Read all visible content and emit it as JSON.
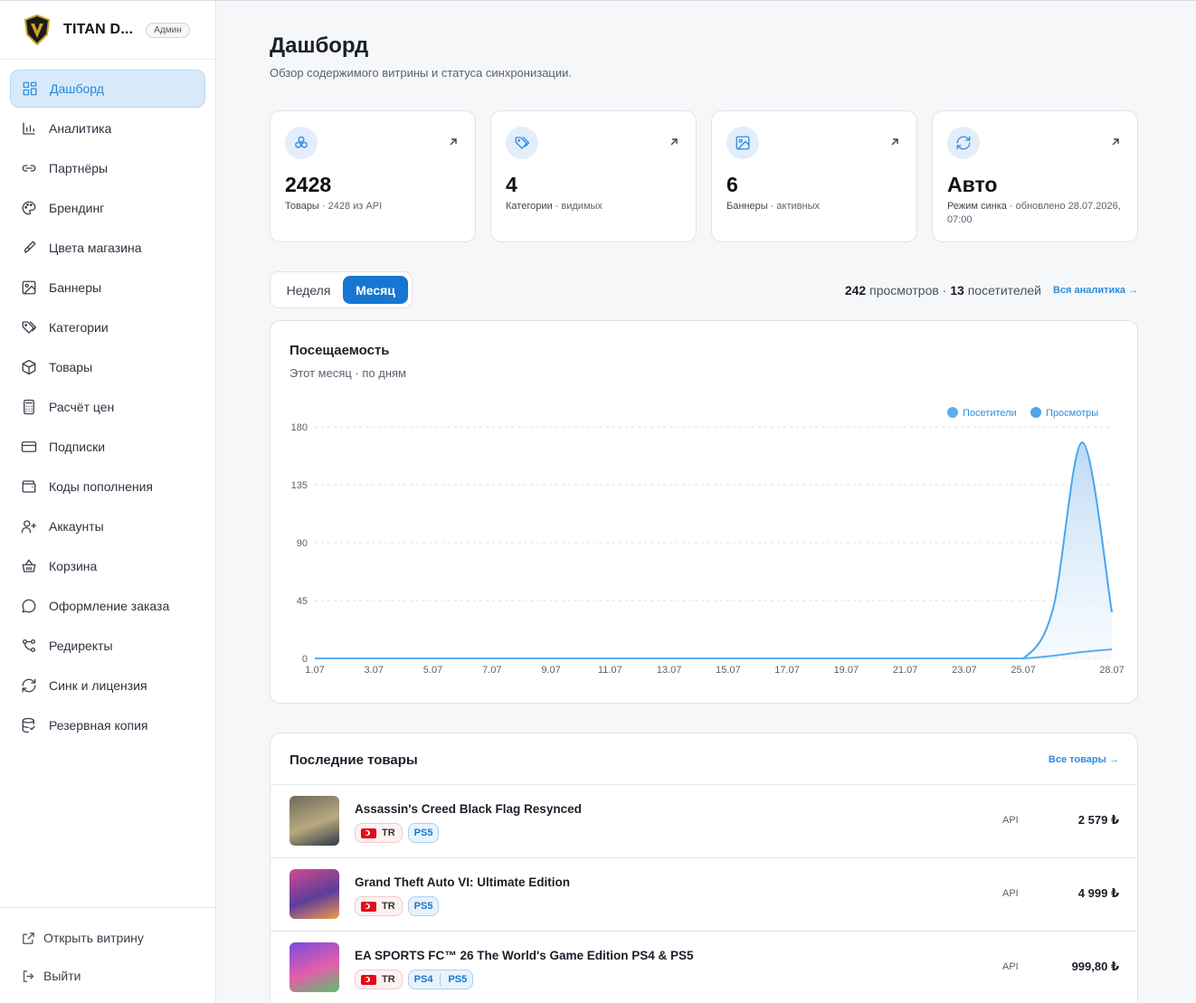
{
  "brand": {
    "name": "TITAN D...",
    "badge": "Админ"
  },
  "sidebar": {
    "items": [
      {
        "label": "Дашборд",
        "icon": "dashboard-icon",
        "active": true
      },
      {
        "label": "Аналитика",
        "icon": "bar-chart-icon"
      },
      {
        "label": "Партнёры",
        "icon": "link-icon"
      },
      {
        "label": "Брендинг",
        "icon": "palette-icon"
      },
      {
        "label": "Цвета магазина",
        "icon": "paint-brush-icon"
      },
      {
        "label": "Баннеры",
        "icon": "image-icon"
      },
      {
        "label": "Категории",
        "icon": "tags-icon"
      },
      {
        "label": "Товары",
        "icon": "box-icon"
      },
      {
        "label": "Расчёт цен",
        "icon": "calculator-icon"
      },
      {
        "label": "Подписки",
        "icon": "credit-card-icon"
      },
      {
        "label": "Коды пополнения",
        "icon": "wallet-icon"
      },
      {
        "label": "Аккаунты",
        "icon": "user-plus-icon"
      },
      {
        "label": "Корзина",
        "icon": "basket-icon"
      },
      {
        "label": "Оформление заказа",
        "icon": "message-icon"
      },
      {
        "label": "Редиректы",
        "icon": "redirect-icon"
      },
      {
        "label": "Синк и лицензия",
        "icon": "refresh-icon"
      },
      {
        "label": "Резервная копия",
        "icon": "database-icon"
      }
    ],
    "bottom": {
      "open_store": "Открыть витрину",
      "logout": "Выйти"
    }
  },
  "header": {
    "title": "Дашборд",
    "subtitle": "Обзор содержимого витрины и статуса синхронизации."
  },
  "cards": [
    {
      "value": "2428",
      "label_key": "Товары",
      "label_rest": " · 2428 из API",
      "icon": "boxes-icon"
    },
    {
      "value": "4",
      "label_key": "Категории",
      "label_rest": " · видимых",
      "icon": "tags-icon"
    },
    {
      "value": "6",
      "label_key": "Баннеры",
      "label_rest": " · активных",
      "icon": "image-icon"
    },
    {
      "value": "Авто",
      "label_key": "Режим синка",
      "label_rest": " · обновлено 28.07.2026, 07:00",
      "icon": "refresh-icon"
    }
  ],
  "period": {
    "week": "Неделя",
    "month": "Месяц",
    "selected": "month"
  },
  "stats": {
    "views": "242",
    "views_label": "просмотров",
    "visitors": "13",
    "visitors_label": "посетителей",
    "link": "Вся аналитика →"
  },
  "chart": {
    "title": "Посещаемость",
    "subtitle": "Этот месяц · по дням"
  },
  "chart_data": {
    "type": "area",
    "x": [
      "1.07",
      "2.07",
      "3.07",
      "4.07",
      "5.07",
      "6.07",
      "7.07",
      "8.07",
      "9.07",
      "10.07",
      "11.07",
      "12.07",
      "13.07",
      "14.07",
      "15.07",
      "16.07",
      "17.07",
      "18.07",
      "19.07",
      "20.07",
      "21.07",
      "22.07",
      "23.07",
      "24.07",
      "25.07",
      "26.07",
      "27.07",
      "28.07"
    ],
    "tick_labels": [
      "1.07",
      "3.07",
      "5.07",
      "7.07",
      "9.07",
      "11.07",
      "13.07",
      "15.07",
      "17.07",
      "19.07",
      "21.07",
      "23.07",
      "25.07",
      "28.07"
    ],
    "series": [
      {
        "name": "Посетители",
        "color": "#5aaef0",
        "values": [
          0,
          0,
          0,
          0,
          0,
          0,
          0,
          0,
          0,
          0,
          0,
          0,
          0,
          0,
          0,
          0,
          0,
          0,
          0,
          0,
          0,
          0,
          0,
          0,
          0,
          2,
          5,
          7
        ]
      },
      {
        "name": "Просмотры",
        "color": "#4aa5ee",
        "values": [
          0,
          0,
          0,
          0,
          0,
          0,
          0,
          0,
          0,
          0,
          0,
          0,
          0,
          0,
          0,
          0,
          0,
          0,
          0,
          0,
          0,
          0,
          0,
          0,
          0,
          38,
          168,
          36
        ]
      }
    ],
    "yticks": [
      0,
      45,
      90,
      135,
      180
    ],
    "ylim": [
      0,
      180
    ],
    "grid": true,
    "legend": "top-right"
  },
  "products": {
    "title": "Последние товары",
    "link": "Все товары →",
    "items": [
      {
        "name": "Assassin's Creed Black Flag Resynced",
        "region": "TR",
        "platforms": [
          "PS5"
        ],
        "source": "API",
        "price": "2 579 ₺",
        "thumb_colors": [
          "#6f6a5a",
          "#b9a97f",
          "#2d3a44"
        ]
      },
      {
        "name": "Grand Theft Auto VI: Ultimate Edition",
        "region": "TR",
        "platforms": [
          "PS5"
        ],
        "source": "API",
        "price": "4 999 ₺",
        "thumb_colors": [
          "#d24a8e",
          "#5d3d9b",
          "#f19a4a"
        ]
      },
      {
        "name": "EA SPORTS FC™ 26 The World's Game Edition PS4 & PS5",
        "region": "TR",
        "platforms": [
          "PS4",
          "PS5"
        ],
        "source": "API",
        "price": "999,80 ₺",
        "thumb_colors": [
          "#7b4be0",
          "#e35fa9",
          "#58c16b"
        ]
      }
    ]
  }
}
